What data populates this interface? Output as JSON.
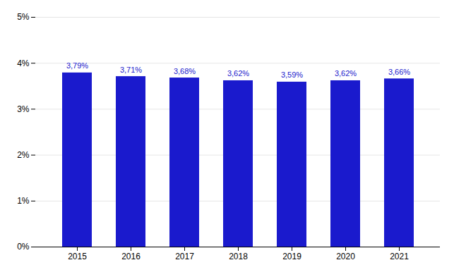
{
  "chart_data": {
    "type": "bar",
    "categories": [
      "2015",
      "2016",
      "2017",
      "2018",
      "2019",
      "2020",
      "2021"
    ],
    "values": [
      3.79,
      3.71,
      3.68,
      3.62,
      3.59,
      3.62,
      3.66
    ],
    "value_labels": [
      "3,79%",
      "3,71%",
      "3,68%",
      "3,62%",
      "3,59%",
      "3,62%",
      "3,66%"
    ],
    "data_labels": true,
    "color": "#1a1acd",
    "ylim": [
      0,
      5
    ],
    "yticks": [
      {
        "value": 0,
        "label": "0%"
      },
      {
        "value": 1,
        "label": "1%"
      },
      {
        "value": 2,
        "label": "2%"
      },
      {
        "value": 3,
        "label": "3%"
      },
      {
        "value": 4,
        "label": "4%"
      },
      {
        "value": 5,
        "label": "5%"
      }
    ],
    "grid": true
  }
}
